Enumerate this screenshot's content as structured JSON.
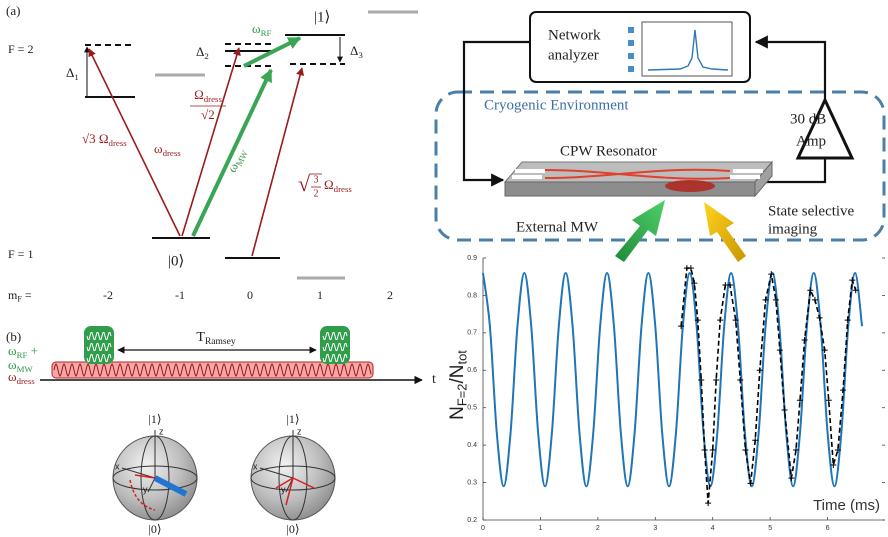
{
  "panel_a": {
    "label": "(a)",
    "f2": "F = 2",
    "f1": "F = 1",
    "delta1": {
      "base": "Δ",
      "sub": "1"
    },
    "delta2": {
      "base": "Δ",
      "sub": "2"
    },
    "delta3": {
      "base": "Δ",
      "sub": "3"
    },
    "state1": "|1⟩",
    "state0": "|0⟩",
    "omega_rf": {
      "base": "ω",
      "sub": "RF"
    },
    "sqrt3_omega": {
      "base": "√3 Ω",
      "sub": "dress"
    },
    "omega_dress": {
      "base": "ω",
      "sub": "dress"
    },
    "omega_over_sqrt2": {
      "num": {
        "base": "Ω",
        "sub": "dress"
      },
      "den": "√2"
    },
    "omega_mw": {
      "base": "ω",
      "sub": "MW"
    },
    "sqrt32_omega": {
      "root": "√",
      "num": "3",
      "den": "2",
      "tail": {
        "base": "Ω",
        "sub": "dress"
      }
    },
    "mf_label": {
      "base": "m",
      "sub": "F",
      "tail": " ="
    },
    "mf_values": [
      "-2",
      "-1",
      "0",
      "1",
      "2"
    ]
  },
  "panel_b": {
    "label": "(b)",
    "pulse_line1": {
      "base": "ω",
      "sub": "RF",
      "tail": " +"
    },
    "pulse_line2": {
      "base": "ω",
      "sub": "MW"
    },
    "t_ramsey": {
      "base": "T",
      "sub": "Ramsey"
    },
    "omega_dress": {
      "base": "ω",
      "sub": "dress"
    },
    "time_axis": "t",
    "bloch": [
      {
        "top": "|1⟩",
        "bottom": "|0⟩",
        "z": "z",
        "x": "x",
        "y": "y"
      },
      {
        "top": "|1⟩",
        "bottom": "|0⟩",
        "z": "z",
        "x": "x",
        "y": "y"
      }
    ]
  },
  "setup": {
    "network_analyzer": [
      "Network",
      "analyzer"
    ],
    "environment": "Cryogenic Environment",
    "amp": [
      "30 dB",
      "Amp"
    ],
    "resonator": "CPW Resonator",
    "external_mw": "External MW",
    "imaging": [
      "State selective",
      "imaging"
    ]
  },
  "chart_data": {
    "type": "line",
    "xlabel": "Time (ms)",
    "ylabel": {
      "base": "N",
      "sub": "F=2",
      "mid": "/N",
      "sub2": "tot"
    },
    "xlim": [
      0,
      7
    ],
    "ylim": [
      0.2,
      0.9
    ],
    "xticks": [
      0,
      1,
      2,
      3,
      4,
      5,
      6
    ],
    "yticks": [
      0.2,
      0.3,
      0.4,
      0.5,
      0.6,
      0.7,
      0.8,
      0.9
    ],
    "series": [
      {
        "color": "#1f75b8",
        "smooth": true,
        "dashed": false,
        "markers": false,
        "x": [
          0,
          0.12,
          0.24,
          0.36,
          0.48,
          0.6,
          0.72,
          0.84,
          0.96,
          1.08,
          1.2,
          1.32,
          1.44,
          1.56,
          1.68,
          1.8,
          1.92,
          2.04,
          2.16,
          2.28,
          2.4,
          2.52,
          2.64,
          2.76,
          2.88,
          3,
          3.12,
          3.24,
          3.36,
          3.48,
          3.6,
          3.72,
          3.84,
          3.96,
          4.08,
          4.2,
          4.32,
          4.44,
          4.56,
          4.68,
          4.8,
          4.92,
          5.04,
          5.16,
          5.28,
          5.4,
          5.52,
          5.64,
          5.76,
          5.88,
          6,
          6.12,
          6.24,
          6.36,
          6.48,
          6.6
        ],
        "values": [
          0.86,
          0.718,
          0.433,
          0.29,
          0.433,
          0.718,
          0.86,
          0.718,
          0.433,
          0.29,
          0.433,
          0.718,
          0.86,
          0.718,
          0.433,
          0.29,
          0.433,
          0.718,
          0.86,
          0.718,
          0.433,
          0.29,
          0.433,
          0.718,
          0.86,
          0.718,
          0.433,
          0.29,
          0.433,
          0.718,
          0.86,
          0.718,
          0.433,
          0.29,
          0.433,
          0.718,
          0.86,
          0.718,
          0.433,
          0.29,
          0.433,
          0.718,
          0.86,
          0.718,
          0.433,
          0.29,
          0.433,
          0.718,
          0.86,
          0.718,
          0.433,
          0.29,
          0.433,
          0.718,
          0.86,
          0.718
        ]
      },
      {
        "color": "#000000",
        "smooth": false,
        "dashed": true,
        "markers": true,
        "x": [
          3.45,
          3.55,
          3.62,
          3.68,
          3.74,
          3.8,
          3.86,
          3.92,
          4,
          4.06,
          4.13,
          4.22,
          4.3,
          4.4,
          4.48,
          4.57,
          4.66,
          4.74,
          4.82,
          4.92,
          5.02,
          5.1,
          5.17,
          5.25,
          5.37,
          5.45,
          5.52,
          5.6,
          5.7,
          5.78,
          5.86,
          5.95,
          6.02,
          6.1,
          6.18,
          6.27,
          6.35,
          6.43,
          6.49
        ],
        "values": [
          0.718,
          0.873,
          0.873,
          0.833,
          0.734,
          0.574,
          0.387,
          0.245,
          0.387,
          0.574,
          0.734,
          0.828,
          0.828,
          0.734,
          0.574,
          0.387,
          0.298,
          0.413,
          0.6,
          0.788,
          0.857,
          0.788,
          0.654,
          0.494,
          0.312,
          0.387,
          0.52,
          0.681,
          0.814,
          0.788,
          0.74,
          0.654,
          0.52,
          0.347,
          0.387,
          0.547,
          0.734,
          0.841,
          0.814
        ]
      }
    ]
  }
}
